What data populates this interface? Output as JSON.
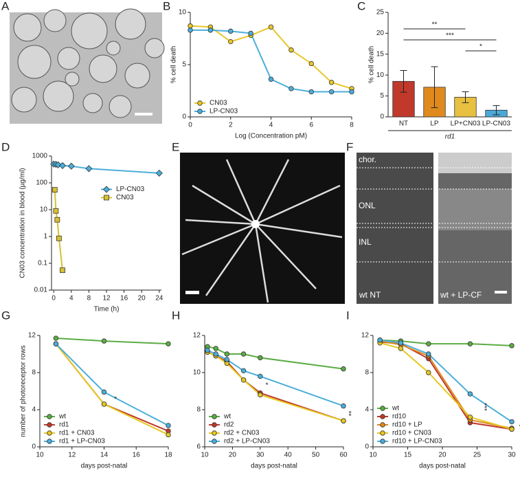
{
  "chart_data": [
    {
      "label": "B",
      "type": "line",
      "x_label": "Log (Concentration pM)",
      "y_label": "% cell death",
      "xlim": [
        0,
        8
      ],
      "xticks": [
        0,
        2,
        4,
        6,
        8
      ],
      "ylim": [
        0,
        10
      ],
      "yticks": [
        0,
        5,
        10
      ],
      "legend": "lower left",
      "series": [
        {
          "name": "CN03",
          "color": "#e8c72a",
          "marker": "circle",
          "x": [
            0,
            1,
            2,
            3,
            4,
            5,
            6,
            7,
            8
          ],
          "values": [
            8.7,
            8.6,
            7.2,
            7.8,
            8.6,
            6.4,
            5.1,
            3.3,
            2.7
          ]
        },
        {
          "name": "LP-CN03",
          "color": "#4aaedb",
          "marker": "circle",
          "x": [
            0,
            1,
            2,
            3,
            4,
            5,
            6,
            7,
            8
          ],
          "values": [
            8.3,
            8.3,
            8.2,
            8.0,
            3.6,
            2.7,
            2.4,
            2.4,
            2.4
          ]
        }
      ]
    },
    {
      "label": "C",
      "type": "bar",
      "y_label": "% cell death",
      "categories": [
        "NT",
        "LP",
        "LP+CN03",
        "LP-CN03"
      ],
      "values": [
        8.5,
        7.1,
        4.7,
        1.6
      ],
      "errors": [
        2.6,
        4.9,
        1.3,
        1.1
      ],
      "colors": [
        "#c0392b",
        "#e08a1e",
        "#e8c040",
        "#4aa8d8"
      ],
      "ylim": [
        0,
        25
      ],
      "yticks": [
        0,
        5,
        10,
        15,
        20,
        25
      ],
      "group_label": "rd1",
      "annotations": [
        "**",
        "***",
        "*"
      ]
    },
    {
      "label": "D",
      "type": "line",
      "x_label": "Time (h)",
      "y_label": "CN03 concentration in blood (µg/ml)",
      "yscale": "log",
      "xlim": [
        -0.5,
        24.5
      ],
      "xticks": [
        0,
        4,
        8,
        12,
        16,
        20,
        24
      ],
      "ylim": [
        0.01,
        1000
      ],
      "yticks": [
        0.01,
        0.1,
        1,
        10,
        100,
        1000
      ],
      "legend": "center right",
      "series": [
        {
          "name": "LP-CN03",
          "color": "#4aaedb",
          "marker": "diamond",
          "x": [
            0,
            0.5,
            1,
            2,
            4,
            8,
            24
          ],
          "values": [
            500,
            490,
            470,
            440,
            420,
            340,
            230
          ]
        },
        {
          "name": "CN03",
          "color": "#d8c030",
          "marker": "square",
          "x": [
            0.25,
            0.5,
            0.8,
            1.2,
            2
          ],
          "values": [
            55,
            9,
            4.2,
            0.85,
            0.055
          ]
        }
      ]
    },
    {
      "label": "G",
      "type": "line",
      "x_label": "days post-natal",
      "y_label": "number of photoreceptor rows",
      "xlim": [
        10,
        18
      ],
      "xticks": [
        10,
        12,
        14,
        16,
        18
      ],
      "ylim": [
        0,
        12
      ],
      "yticks": [
        0,
        4,
        8,
        12
      ],
      "legend": "lower left",
      "x": [
        11,
        14,
        18
      ],
      "annotations": [
        "*"
      ],
      "series": [
        {
          "name": "wt",
          "color": "#5aac44",
          "marker": "circle",
          "values": [
            11.7,
            11.4,
            11.1
          ]
        },
        {
          "name": "rd1",
          "color": "#c0392b",
          "marker": "circle",
          "values": [
            11.1,
            4.6,
            1.7
          ]
        },
        {
          "name": "rd1 + CN03",
          "color": "#e5c820",
          "marker": "circle",
          "values": [
            11.1,
            4.6,
            1.3
          ]
        },
        {
          "name": "rd1 + LP-CN03",
          "color": "#4aaedb",
          "marker": "circle",
          "values": [
            11.1,
            5.9,
            2.3
          ]
        }
      ]
    },
    {
      "label": "H",
      "type": "line",
      "x_label": "days post-natal",
      "xlim": [
        10,
        60
      ],
      "xticks": [
        10,
        20,
        30,
        40,
        50,
        60
      ],
      "ylim": [
        6,
        12
      ],
      "yticks": [
        6,
        8,
        10,
        12
      ],
      "legend": "lower left",
      "x": [
        11,
        14,
        18,
        24,
        30,
        60
      ],
      "annotations": [
        "*",
        "**"
      ],
      "series": [
        {
          "name": "wt",
          "color": "#5aac44",
          "marker": "circle",
          "values": [
            11.4,
            11.3,
            11.0,
            11.0,
            10.8,
            10.2
          ]
        },
        {
          "name": "rd2",
          "color": "#c0392b",
          "marker": "circle",
          "values": [
            11.1,
            10.9,
            10.6,
            9.6,
            8.9,
            7.4
          ]
        },
        {
          "name": "rd2 + CN03",
          "color": "#e5c820",
          "marker": "circle",
          "values": [
            11.1,
            10.9,
            10.5,
            9.6,
            8.8,
            7.4
          ]
        },
        {
          "name": "rd2 + LP-CN03",
          "color": "#4aaedb",
          "marker": "circle",
          "values": [
            11.2,
            11.0,
            10.7,
            10.1,
            9.8,
            8.2
          ]
        }
      ]
    },
    {
      "label": "I",
      "type": "line",
      "x_label": "days post-natal",
      "xlim": [
        10,
        30
      ],
      "xticks": [
        10,
        15,
        20,
        25,
        30
      ],
      "ylim": [
        0,
        12
      ],
      "yticks": [
        0,
        4,
        8,
        12
      ],
      "legend": "lower left",
      "x": [
        11,
        14,
        18,
        24,
        30
      ],
      "annotations": [
        "***",
        "*"
      ],
      "series": [
        {
          "name": "wt",
          "color": "#5aac44",
          "marker": "circle",
          "values": [
            11.5,
            11.4,
            11.1,
            11.1,
            10.9
          ]
        },
        {
          "name": "rd10",
          "color": "#c0392b",
          "marker": "circle",
          "values": [
            11.3,
            11.1,
            9.5,
            2.6,
            1.9
          ]
        },
        {
          "name": "rd10 + LP",
          "color": "#e08a1e",
          "marker": "circle",
          "values": [
            11.4,
            11.0,
            9.8,
            2.9,
            2.0
          ]
        },
        {
          "name": "rd10 + CN03",
          "color": "#e5c820",
          "marker": "circle",
          "values": [
            11.2,
            10.6,
            8.0,
            3.2,
            1.9
          ]
        },
        {
          "name": "rd10 + LP-CN03",
          "color": "#4aaedb",
          "marker": "circle",
          "values": [
            11.5,
            11.2,
            10.0,
            5.7,
            2.7
          ]
        }
      ]
    }
  ],
  "images": [
    {
      "label": "A"
    },
    {
      "label": "E"
    },
    {
      "label": "F",
      "texts": [
        "chor.",
        "ONL",
        "INL",
        "wt NT",
        "wt + LP-CF"
      ]
    }
  ]
}
